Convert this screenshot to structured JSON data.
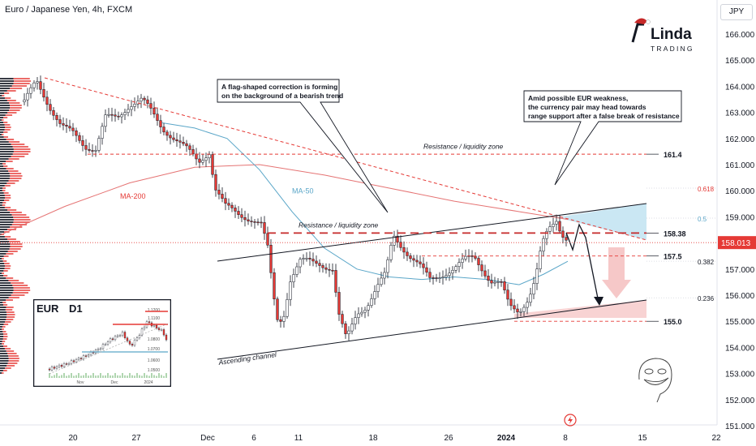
{
  "header": {
    "title": "Euro / Japanese Yen, 4h, FXCM",
    "currency": "JPY"
  },
  "logo": {
    "line1": "Linda",
    "line2": "TRADING"
  },
  "colors": {
    "bull": "#ffffff",
    "bear": "#e53935",
    "trendline": "#e53935",
    "ma200": "#e57373",
    "ma50": "#5aa6c8",
    "zoneBlue": "#9fd3ea",
    "zoneRed": "#f3b6b6",
    "accent": "#e53935"
  },
  "chart_data": {
    "type": "candlestick",
    "yaxis": {
      "ticks": [
        "166.000",
        "165.000",
        "164.000",
        "163.000",
        "162.000",
        "161.000",
        "160.000",
        "159.000",
        "158.000",
        "157.000",
        "156.000",
        "155.000",
        "154.000",
        "153.000",
        "152.000",
        "151.000"
      ],
      "ylim": [
        150.8,
        166.9
      ]
    },
    "xaxis": {
      "ticks": [
        "20",
        "27",
        "Dec",
        "6",
        "11",
        "18",
        "26",
        "2024",
        "8",
        "15",
        "22"
      ]
    },
    "price_label": "158.013",
    "levels": [
      {
        "label": "161.4",
        "value": 161.4
      },
      {
        "label": "158.38",
        "value": 158.38
      },
      {
        "label": "157.5",
        "value": 157.5
      },
      {
        "label": "155.0",
        "value": 155.0
      }
    ],
    "fib_levels": [
      {
        "label": "0.618",
        "value": 160.1
      },
      {
        "label": "0.5",
        "value": 158.95
      },
      {
        "label": "0.382",
        "value": 157.3
      },
      {
        "label": "0.236",
        "value": 155.9
      }
    ],
    "indicators": [
      {
        "name": "MA-200"
      },
      {
        "name": "MA-50"
      }
    ],
    "zone_labels": [
      "Resistance / liquidity zone",
      "Resistance / liquidity zone",
      "Ascending channel"
    ],
    "annotations": [
      {
        "text": [
          "A flag-shaped correction is forming",
          "on the background of a bearish trend"
        ]
      },
      {
        "text": [
          "Amid possible EUR weakness,",
          "the currency pair may head towards",
          "range support after a false break of resistance"
        ]
      }
    ],
    "inset": {
      "title_left": "EUR",
      "title_right": "D1",
      "ticks": [
        "1.1200",
        "1.1100",
        "1.0800",
        "1.0700",
        "1.0600",
        "1.0500"
      ],
      "xticks": [
        "Nov",
        "Dec",
        "2024"
      ]
    }
  }
}
